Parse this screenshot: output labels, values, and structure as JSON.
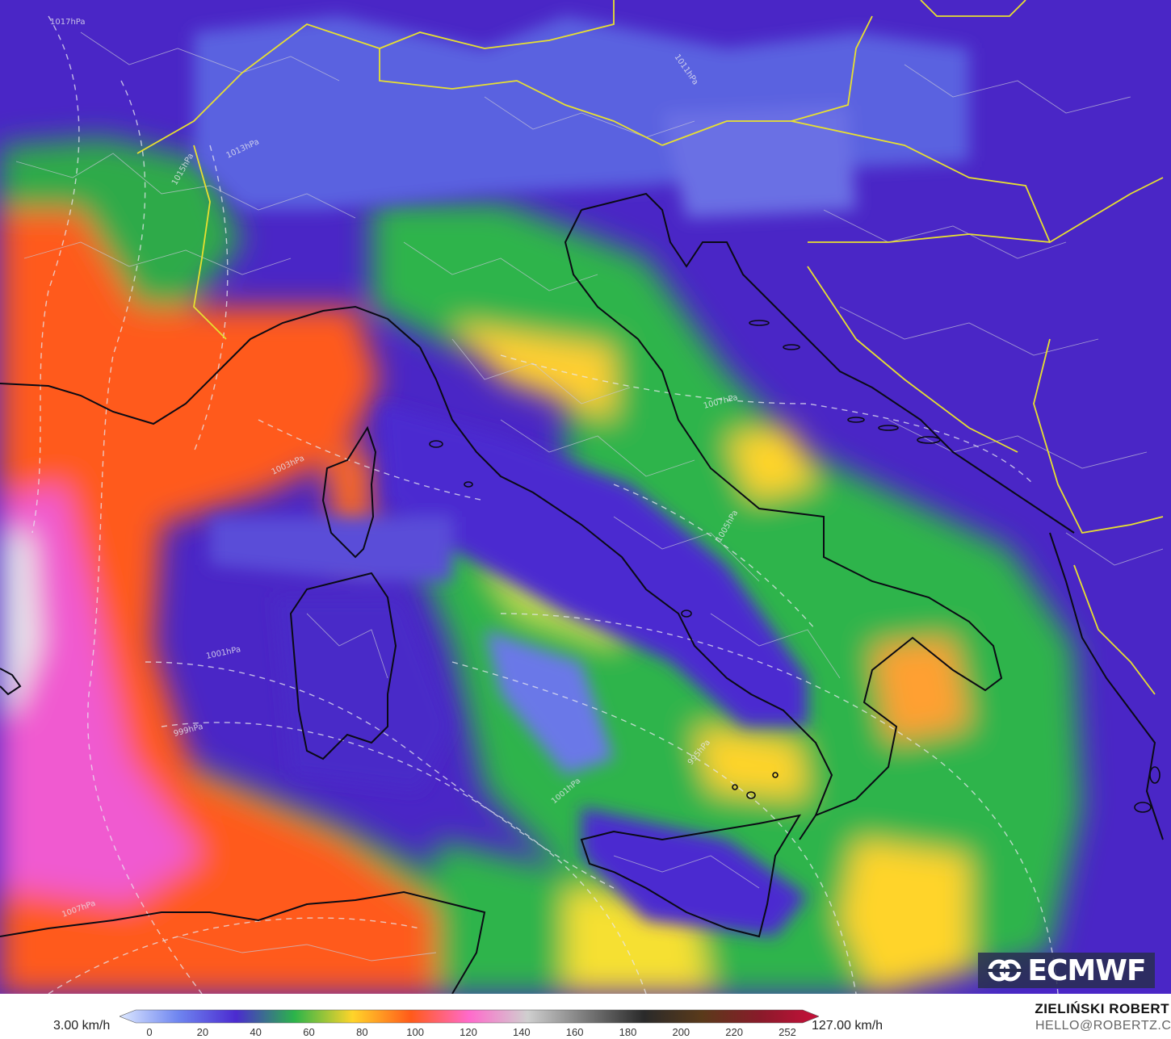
{
  "map": {
    "model": "ECMWF",
    "isobar_labels": [
      "1017hPa",
      "1013hPa",
      "1011hPa",
      "1015hPa",
      "1007hPa",
      "1003hPa",
      "1005hPa",
      "1001hPa",
      "999hPa",
      "995hPa",
      "1001hPa",
      "1007hPa"
    ]
  },
  "legend": {
    "min_label": "3.00 km/h",
    "max_label": "127.00 km/h",
    "ticks": [
      "0",
      "20",
      "40",
      "60",
      "80",
      "100",
      "120",
      "140",
      "160",
      "180",
      "200",
      "220",
      "252"
    ],
    "colors": [
      "#dde8ff",
      "#6f86f0",
      "#4b2bd0",
      "#2bb44a",
      "#ffd42a",
      "#ff5a1a",
      "#ff6acb",
      "#cfcfcf",
      "#7a7a7a",
      "#2a2a2a",
      "#5a3a1a",
      "#8a1a2a",
      "#c8103a"
    ]
  },
  "credits": {
    "author": "ZIELIŃSKI ROBERT",
    "email": "HELLO@ROBERTZ.CO"
  },
  "logo": {
    "text": "ECMWF"
  }
}
